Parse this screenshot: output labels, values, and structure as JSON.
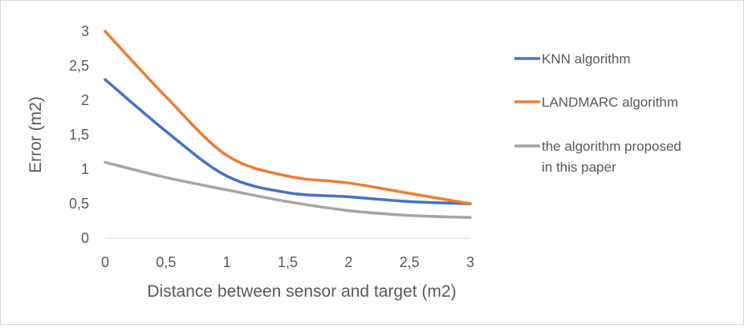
{
  "chart_data": {
    "type": "line",
    "xlabel": "Distance between sensor and target (m2)",
    "ylabel": "Error (m2)",
    "xlim": [
      0,
      3
    ],
    "ylim": [
      0,
      3
    ],
    "x_ticks": [
      "0",
      "0,5",
      "1",
      "1,5",
      "2",
      "2,5",
      "3"
    ],
    "y_ticks": [
      "0",
      "0,5",
      "1",
      "1,5",
      "2",
      "2,5",
      "3"
    ],
    "grid": false,
    "legend_position": "right",
    "series": [
      {
        "name": "KNN algorithm",
        "color": "#4472c4",
        "x": [
          0,
          0.5,
          1,
          1.5,
          2,
          2.5,
          3
        ],
        "values": [
          2.3,
          1.55,
          0.9,
          0.66,
          0.6,
          0.53,
          0.5
        ]
      },
      {
        "name": "LANDMARC algorithm",
        "color": "#ed7d31",
        "x": [
          0,
          0.5,
          1,
          1.5,
          2,
          2.5,
          3
        ],
        "values": [
          3.0,
          2.05,
          1.2,
          0.9,
          0.8,
          0.65,
          0.5
        ]
      },
      {
        "name_lines": [
          "the algorithm proposed",
          "in this paper"
        ],
        "color": "#a5a5a5",
        "x": [
          0,
          0.5,
          1,
          1.5,
          2,
          2.5,
          3
        ],
        "values": [
          1.1,
          0.88,
          0.7,
          0.53,
          0.4,
          0.33,
          0.3
        ]
      }
    ]
  }
}
